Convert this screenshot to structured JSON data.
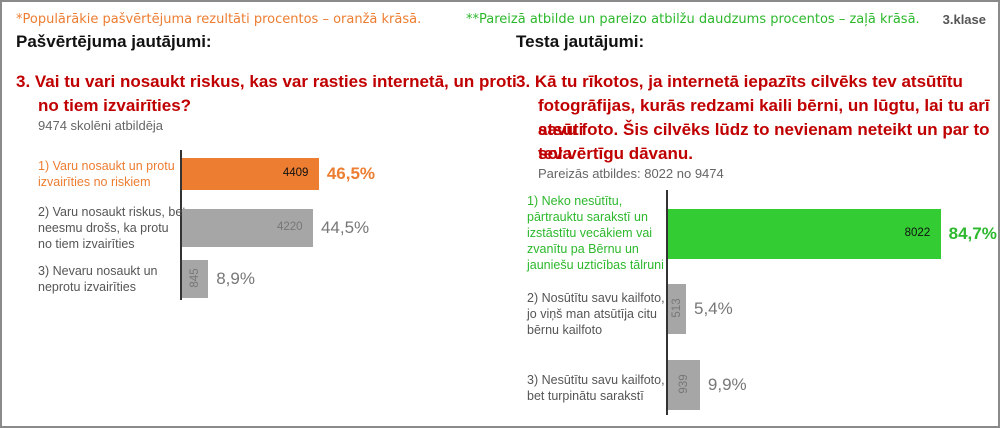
{
  "header": {
    "note_left": "*Populārākie pašvērtējuma rezultāti procentos – oranžā krāsā.",
    "note_right": "**Pareizā atbilde un pareizo atbilžu daudzums procentos – zaļā krāsā.",
    "grade": "3.klase"
  },
  "left": {
    "panel_title": "Pašvērtējuma jautājumi:",
    "question_line1": "3. Vai tu vari nosaukt riskus, kas var rasties internetā, un proti",
    "question_line2": "no tiem izvairīties?",
    "respondents": "9474 skolēni atbildēja"
  },
  "right": {
    "panel_title": "Testa jautājumi:",
    "question_line1": "3. Kā tu rīkotos, ja internetā iepazīts cilvēks tev atsūtītu",
    "question_line2": "fotogrāfijas, kurās redzami kaili bērni, un lūgtu, lai tu arī atsūti",
    "question_line3": "savu foto. Šis cilvēks lūdz to nevienam neteikt un par to sola",
    "question_line4": "tev vērtīgu dāvanu.",
    "respondents": "Pareizās atbildes: 8022 no 9474"
  },
  "colors": {
    "orange": "#ed7d31",
    "green": "#33cc33",
    "gray": "#a6a6a6",
    "question_red": "#c00000"
  },
  "chart_data": [
    {
      "type": "bar",
      "orientation": "horizontal",
      "total": 9474,
      "categories": [
        [
          "1) Varu nosaukt un protu",
          "izvairīties no riskiem"
        ],
        [
          "2) Varu nosaukt riskus, bet",
          "neesmu drošs, ka protu",
          "no tiem izvairīties"
        ],
        [
          "3) Nevaru nosaukt un",
          "neprotu izvairīties"
        ]
      ],
      "values": [
        4409,
        4220,
        845
      ],
      "value_labels": [
        "4409",
        "4220",
        "845"
      ],
      "percent_labels": [
        "46,5%",
        "44,5%",
        "8,9%"
      ],
      "percents": [
        46.5,
        44.5,
        8.9
      ],
      "highlight": [
        true,
        false,
        false
      ],
      "highlight_color": "orange"
    },
    {
      "type": "bar",
      "orientation": "horizontal",
      "total": 9474,
      "categories": [
        [
          "1) Neko nesūtītu,",
          "pārtrauktu sarakstī un",
          "izstāstītu vecākiem vai",
          "zvanītu pa Bērnu un",
          "jauniešu uzticības tālruni"
        ],
        [
          "2) Nosūtītu savu kailfoto,",
          "jo viņš man atsūtīja citu",
          "bērnu kailfoto"
        ],
        [
          "3) Nesūtītu savu kailfoto,",
          "bet turpinātu sarakstī"
        ]
      ],
      "values": [
        8022,
        513,
        939
      ],
      "value_labels": [
        "8022",
        "513",
        "939"
      ],
      "percent_labels": [
        "84,7%",
        "5,4%",
        "9,9%"
      ],
      "percents": [
        84.7,
        5.4,
        9.9
      ],
      "highlight": [
        true,
        false,
        false
      ],
      "highlight_color": "green"
    }
  ]
}
